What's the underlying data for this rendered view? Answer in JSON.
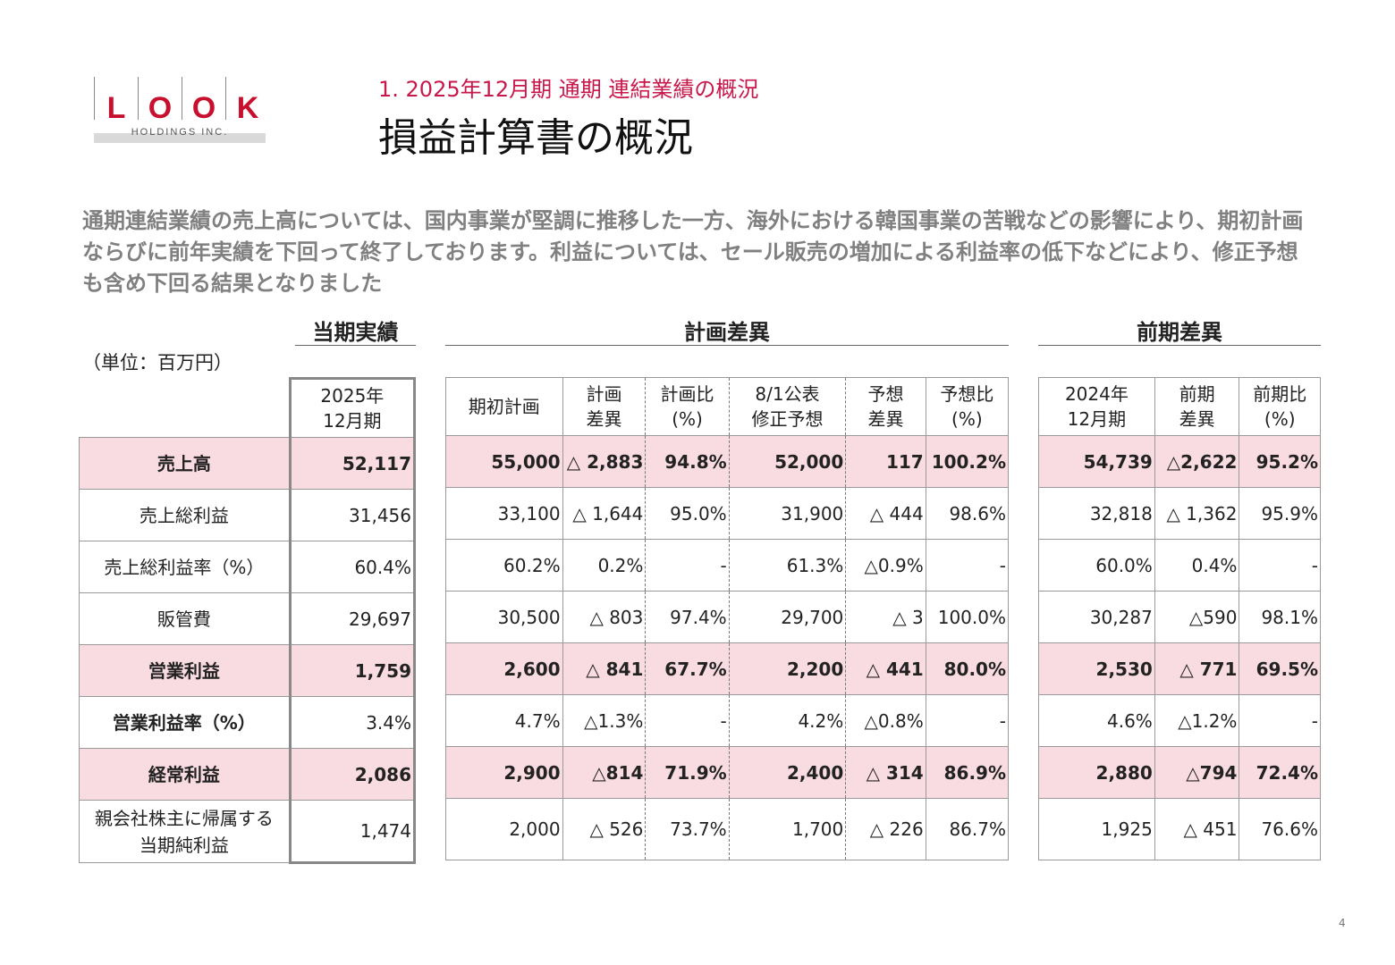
{
  "logo": {
    "letters": [
      "L",
      "O",
      "O",
      "K"
    ],
    "subtitle": "HOLDINGS INC."
  },
  "section": "1. 2025年12月期 通期 連結業績の概況",
  "title": "損益計算書の概況",
  "lead": "通期連結業績の売上高については、国内事業が堅調に推移した一方、海外における韓国事業の苦戦などの影響により、期初計画ならびに前年実績を下回って終了しております。利益については、セール販売の増加による利益率の低下などにより、修正予想も含め下回る結果となりました",
  "groups": {
    "current": "当期実績",
    "plan": "計画差異",
    "prior": "前期差異"
  },
  "unit": "（単位：百万円）",
  "headers": {
    "current": [
      "2025年\n12月期"
    ],
    "plan": [
      "期初計画",
      "計画\n差異",
      "計画比\n(%)",
      "8/1公表\n修正予想",
      "予想\n差異",
      "予想比\n(%)"
    ],
    "prior": [
      "2024年\n12月期",
      "前期\n差異",
      "前期比\n(%)"
    ]
  },
  "rows": [
    {
      "label": "売上高",
      "pink": true,
      "current": "52,117",
      "plan": [
        "55,000",
        "△ 2,883",
        "94.8%",
        "52,000",
        "117",
        "100.2%"
      ],
      "prior": [
        "54,739",
        "△2,622",
        "95.2%"
      ]
    },
    {
      "label": "売上総利益",
      "current": "31,456",
      "plan": [
        "33,100",
        "△ 1,644",
        "95.0%",
        "31,900",
        "△ 444",
        "98.6%"
      ],
      "prior": [
        "32,818",
        "△ 1,362",
        "95.9%"
      ]
    },
    {
      "label": "売上総利益率（%）",
      "current": "60.4%",
      "plan": [
        "60.2%",
        "0.2%",
        "-",
        "61.3%",
        "△0.9%",
        "-"
      ],
      "prior": [
        "60.0%",
        "0.4%",
        "-"
      ]
    },
    {
      "label": "販管費",
      "current": "29,697",
      "plan": [
        "30,500",
        "△ 803",
        "97.4%",
        "29,700",
        "△ 3",
        "100.0%"
      ],
      "prior": [
        "30,287",
        "△590",
        "98.1%"
      ]
    },
    {
      "label": "営業利益",
      "pink": true,
      "current": "1,759",
      "plan": [
        "2,600",
        "△ 841",
        "67.7%",
        "2,200",
        "△ 441",
        "80.0%"
      ],
      "prior": [
        "2,530",
        "△ 771",
        "69.5%"
      ]
    },
    {
      "label": "営業利益率（%）",
      "boldLabel": true,
      "current": "3.4%",
      "plan": [
        "4.7%",
        "△1.3%",
        "-",
        "4.2%",
        "△0.8%",
        "-"
      ],
      "prior": [
        "4.6%",
        "△1.2%",
        "-"
      ]
    },
    {
      "label": "経常利益",
      "pink": true,
      "current": "2,086",
      "plan": [
        "2,900",
        "△814",
        "71.9%",
        "2,400",
        "△ 314",
        "86.9%"
      ],
      "prior": [
        "2,880",
        "△794",
        "72.4%"
      ]
    },
    {
      "label": "親会社株主に帰属する\n当期純利益",
      "current": "1,474",
      "plan": [
        "2,000",
        "△ 526",
        "73.7%",
        "1,700",
        "△ 226",
        "86.7%"
      ],
      "prior": [
        "1,925",
        "△ 451",
        "76.6%"
      ]
    }
  ],
  "page_number": "4",
  "colors": {
    "accent": "#c8174a",
    "pink_row": "#f9dbe2"
  }
}
